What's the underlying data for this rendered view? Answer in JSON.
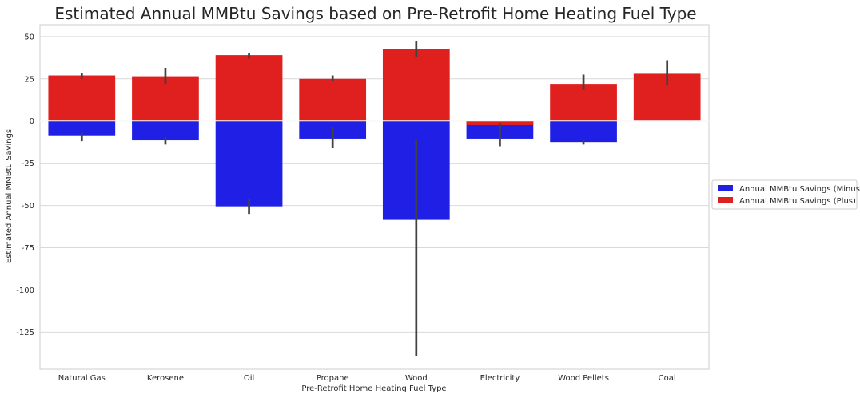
{
  "chart_data": {
    "type": "bar",
    "title": "Estimated Annual MMBtu Savings based on Pre-Retrofit Home Heating Fuel Type",
    "xlabel": "Pre-Retrofit Home Heating Fuel Type",
    "ylabel": "Estimated Annual MMBtu Savings",
    "ylim": [
      -147,
      57
    ],
    "yticks": [
      50,
      25,
      0,
      -25,
      -50,
      -75,
      -100,
      -125
    ],
    "grid": true,
    "legend_placement": "center-right",
    "categories": [
      "Natural Gas",
      "Kerosene",
      "Oil",
      "Propane",
      "Wood",
      "Electricity",
      "Wood Pellets",
      "Coal"
    ],
    "series": [
      {
        "name": "Annual MMBtu Savings (Minus)",
        "color": "#1f1fe6",
        "values": [
          -8.5,
          -11.5,
          -50.5,
          -10.5,
          -58.5,
          -10.5,
          -12.5,
          null
        ],
        "error_low": [
          -12,
          -14,
          -55,
          -16,
          -139,
          -15,
          -14,
          null
        ],
        "error_high": [
          -7,
          -9.5,
          -46,
          -3.5,
          -11,
          -2,
          -11.5,
          null
        ]
      },
      {
        "name": "Annual MMBtu Savings (Plus)",
        "color": "#e01f1f",
        "values": [
          27,
          26.5,
          39,
          25,
          42.5,
          -2.5,
          22,
          28
        ],
        "error_low": [
          25,
          22,
          37,
          23.5,
          38,
          -4,
          18.5,
          21.5
        ],
        "error_high": [
          28.5,
          31.5,
          40,
          27,
          47.5,
          -1,
          27.5,
          36
        ]
      }
    ]
  }
}
